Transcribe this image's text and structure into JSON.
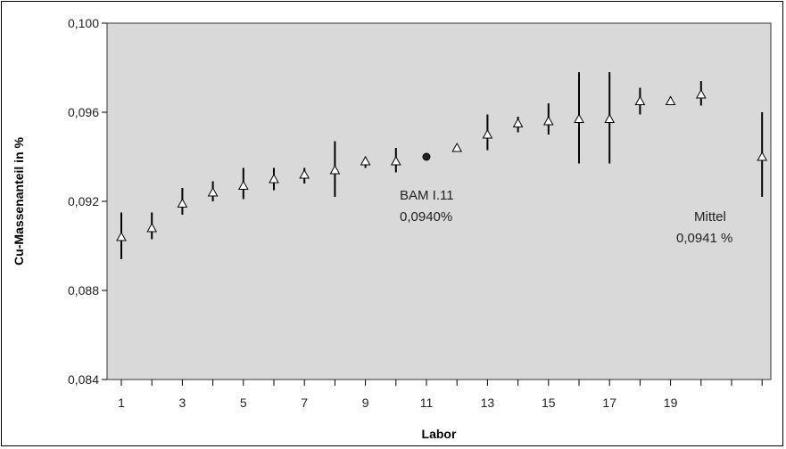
{
  "chart_data": {
    "type": "scatter",
    "title": "",
    "xlabel": "Labor",
    "ylabel": "Cu-Massenanteil in %",
    "ylim": [
      0.084,
      0.1
    ],
    "y_ticks": [
      "0,100",
      "0,096",
      "0,092",
      "0,088",
      "0,084"
    ],
    "y_tick_values": [
      0.1,
      0.096,
      0.092,
      0.088,
      0.084
    ],
    "x_ticks": [
      "1",
      "3",
      "5",
      "7",
      "9",
      "11",
      "13",
      "15",
      "17",
      "19"
    ],
    "x_tick_values": [
      1,
      3,
      5,
      7,
      9,
      11,
      13,
      15,
      17,
      19
    ],
    "grid": false,
    "marker_colors": {
      "lab": "#ffffff",
      "reference": "#222222",
      "plot_bg": "#d9d9d9"
    },
    "points": [
      {
        "lab": 1,
        "y": 0.0904,
        "low": 0.0894,
        "high": 0.0915
      },
      {
        "lab": 2,
        "y": 0.0908,
        "low": 0.0903,
        "high": 0.0915
      },
      {
        "lab": 3,
        "y": 0.0919,
        "low": 0.0914,
        "high": 0.0926
      },
      {
        "lab": 4,
        "y": 0.0924,
        "low": 0.092,
        "high": 0.0929
      },
      {
        "lab": 5,
        "y": 0.0927,
        "low": 0.0921,
        "high": 0.0935
      },
      {
        "lab": 6,
        "y": 0.093,
        "low": 0.0925,
        "high": 0.0935
      },
      {
        "lab": 7,
        "y": 0.0932,
        "low": 0.0928,
        "high": 0.0935
      },
      {
        "lab": 8,
        "y": 0.0934,
        "low": 0.0922,
        "high": 0.0947
      },
      {
        "lab": 9,
        "y": 0.0938,
        "low": 0.0935,
        "high": 0.094
      },
      {
        "lab": 10,
        "y": 0.0938,
        "low": 0.0933,
        "high": 0.0944
      },
      {
        "lab": 12,
        "y": 0.0944,
        "low": 0.0943,
        "high": 0.0945
      },
      {
        "lab": 13,
        "y": 0.095,
        "low": 0.0943,
        "high": 0.0959
      },
      {
        "lab": 14,
        "y": 0.0955,
        "low": 0.0951,
        "high": 0.0958
      },
      {
        "lab": 15,
        "y": 0.0956,
        "low": 0.095,
        "high": 0.0964
      },
      {
        "lab": 16,
        "y": 0.0957,
        "low": 0.0937,
        "high": 0.0978
      },
      {
        "lab": 17,
        "y": 0.0957,
        "low": 0.0937,
        "high": 0.0978
      },
      {
        "lab": 18,
        "y": 0.0965,
        "low": 0.0959,
        "high": 0.0971
      },
      {
        "lab": 19,
        "y": 0.0965,
        "low": 0.0964,
        "high": 0.0967
      },
      {
        "lab": 20,
        "y": 0.0968,
        "low": 0.0963,
        "high": 0.0974
      }
    ],
    "reference_point": {
      "lab": 11,
      "y": 0.094
    },
    "mean_point": {
      "lab": 22,
      "y": 0.094,
      "low": 0.0922,
      "high": 0.096
    },
    "annotations": {
      "reference_line1": "BAM I.11",
      "reference_line2": "0,0940%",
      "mean_line1": "Mittel",
      "mean_line2": "0,0941 %"
    }
  }
}
